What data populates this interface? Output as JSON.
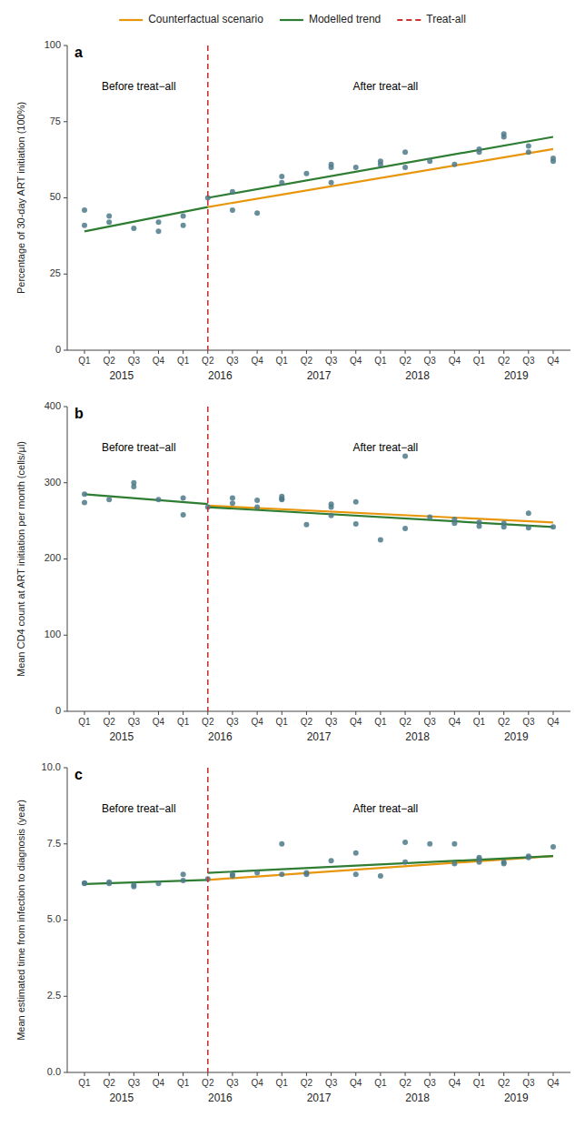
{
  "chart_data": [
    {
      "type": "scatter",
      "title": "a",
      "ylabel": "Percentage of 30-day ART initiation (100%)",
      "xlim": [
        0.3,
        20.7
      ],
      "xticks": [
        {
          "value": 1,
          "label": "Q1"
        },
        {
          "value": 2,
          "label": "Q2"
        },
        {
          "value": 3,
          "label": "Q3"
        },
        {
          "value": 4,
          "label": "Q4"
        },
        {
          "value": 5,
          "label": "Q1"
        },
        {
          "value": 6,
          "label": "Q2"
        },
        {
          "value": 7,
          "label": "Q3"
        },
        {
          "value": 8,
          "label": "Q4"
        },
        {
          "value": 9,
          "label": "Q1"
        },
        {
          "value": 10,
          "label": "Q2"
        },
        {
          "value": 11,
          "label": "Q3"
        },
        {
          "value": 12,
          "label": "Q4"
        },
        {
          "value": 13,
          "label": "Q1"
        },
        {
          "value": 14,
          "label": "Q2"
        },
        {
          "value": 15,
          "label": "Q3"
        },
        {
          "value": 16,
          "label": "Q4"
        },
        {
          "value": 17,
          "label": "Q1"
        },
        {
          "value": 18,
          "label": "Q2"
        },
        {
          "value": 19,
          "label": "Q3"
        },
        {
          "value": 20,
          "label": "Q4"
        }
      ],
      "x2ticks": [
        {
          "value": 2.5,
          "label": "2015"
        },
        {
          "value": 6.5,
          "label": "2016"
        },
        {
          "value": 10.5,
          "label": "2017"
        },
        {
          "value": 14.5,
          "label": "2018"
        },
        {
          "value": 18.5,
          "label": "2019"
        }
      ],
      "ylim": [
        0,
        100
      ],
      "yticks": [
        0,
        25,
        50,
        75,
        100
      ],
      "grid": false,
      "annotations": [
        {
          "text": "Before treat−all",
          "x": 3.2
        },
        {
          "text": "After treat−all",
          "x": 13.2
        }
      ],
      "series": [
        {
          "type": "scatter",
          "marker": "circle",
          "color": "#4d7a8a",
          "x": [
            1,
            1,
            2,
            2,
            3,
            4,
            4,
            5,
            5,
            6,
            7,
            7,
            8,
            9,
            9,
            10,
            11,
            11,
            11,
            12,
            13,
            13,
            14,
            14,
            15,
            16,
            17,
            17,
            18,
            18,
            19,
            19,
            20,
            20
          ],
          "values": [
            41,
            46,
            42,
            44,
            40,
            39,
            42,
            41,
            44,
            50,
            52,
            46,
            45,
            55,
            57,
            58,
            60,
            61,
            55,
            60,
            62,
            61,
            60,
            65,
            62,
            61,
            65,
            66,
            70,
            71,
            67,
            65,
            62,
            63
          ]
        },
        {
          "name": "Counterfactual scenario",
          "type": "line",
          "color": "#e8960c",
          "x": [
            6,
            20
          ],
          "values": [
            47.0,
            66.0
          ]
        },
        {
          "name": "Modelled trend",
          "type": "line",
          "color": "#2e7d32",
          "x": [
            1,
            6,
            null,
            6,
            20
          ],
          "values": [
            39.0,
            47.0,
            null,
            50.0,
            70.0
          ]
        },
        {
          "name": "Treat-all",
          "type": "vline",
          "color": "#cc3333",
          "line_style": "dashed",
          "x": [
            6.0
          ]
        }
      ]
    },
    {
      "type": "scatter",
      "title": "b",
      "ylabel": "Mean CD4 count at ART initiation per month (cells/µl)",
      "xlim": [
        0.3,
        20.7
      ],
      "xticks": [
        {
          "value": 1,
          "label": "Q1"
        },
        {
          "value": 2,
          "label": "Q2"
        },
        {
          "value": 3,
          "label": "Q3"
        },
        {
          "value": 4,
          "label": "Q4"
        },
        {
          "value": 5,
          "label": "Q1"
        },
        {
          "value": 6,
          "label": "Q2"
        },
        {
          "value": 7,
          "label": "Q3"
        },
        {
          "value": 8,
          "label": "Q4"
        },
        {
          "value": 9,
          "label": "Q1"
        },
        {
          "value": 10,
          "label": "Q2"
        },
        {
          "value": 11,
          "label": "Q3"
        },
        {
          "value": 12,
          "label": "Q4"
        },
        {
          "value": 13,
          "label": "Q1"
        },
        {
          "value": 14,
          "label": "Q2"
        },
        {
          "value": 15,
          "label": "Q3"
        },
        {
          "value": 16,
          "label": "Q4"
        },
        {
          "value": 17,
          "label": "Q1"
        },
        {
          "value": 18,
          "label": "Q2"
        },
        {
          "value": 19,
          "label": "Q3"
        },
        {
          "value": 20,
          "label": "Q4"
        }
      ],
      "x2ticks": [
        {
          "value": 2.5,
          "label": "2015"
        },
        {
          "value": 6.5,
          "label": "2016"
        },
        {
          "value": 10.5,
          "label": "2017"
        },
        {
          "value": 14.5,
          "label": "2018"
        },
        {
          "value": 18.5,
          "label": "2019"
        }
      ],
      "ylim": [
        0,
        400
      ],
      "yticks": [
        0,
        100,
        200,
        300,
        400
      ],
      "grid": false,
      "annotations": [
        {
          "text": "Before treat−all",
          "x": 3.2
        },
        {
          "text": "After treat−all",
          "x": 13.2
        }
      ],
      "series": [
        {
          "type": "scatter",
          "marker": "circle",
          "color": "#4d7a8a",
          "x": [
            1,
            1,
            2,
            3,
            3,
            4,
            5,
            5,
            6,
            7,
            7,
            8,
            8,
            9,
            9,
            9,
            10,
            11,
            11,
            11,
            12,
            12,
            13,
            14,
            14,
            15,
            16,
            16,
            17,
            17,
            18,
            18,
            19,
            19,
            20
          ],
          "values": [
            285,
            274,
            278,
            295,
            300,
            278,
            280,
            258,
            268,
            273,
            280,
            268,
            277,
            278,
            279,
            282,
            245,
            268,
            257,
            272,
            275,
            246,
            225,
            335,
            240,
            255,
            252,
            247,
            248,
            243,
            247,
            242,
            241,
            260,
            242
          ]
        },
        {
          "type": "line",
          "color": "#e8960c",
          "x": [
            6,
            20
          ],
          "values": [
            270.0,
            248.0
          ]
        },
        {
          "type": "line",
          "color": "#2e7d32",
          "x": [
            1,
            6,
            null,
            6,
            20
          ],
          "values": [
            285.0,
            272.0,
            null,
            268.0,
            242.0
          ]
        },
        {
          "type": "vline",
          "color": "#cc3333",
          "line_style": "dashed",
          "x": [
            6.0
          ]
        }
      ]
    },
    {
      "type": "scatter",
      "title": "c",
      "ylabel": "Mean estimated time from infection to diagnosis (year)",
      "xlim": [
        0.3,
        20.7
      ],
      "xticks": [
        {
          "value": 1,
          "label": "Q1"
        },
        {
          "value": 2,
          "label": "Q2"
        },
        {
          "value": 3,
          "label": "Q3"
        },
        {
          "value": 4,
          "label": "Q4"
        },
        {
          "value": 5,
          "label": "Q1"
        },
        {
          "value": 6,
          "label": "Q2"
        },
        {
          "value": 7,
          "label": "Q3"
        },
        {
          "value": 8,
          "label": "Q4"
        },
        {
          "value": 9,
          "label": "Q1"
        },
        {
          "value": 10,
          "label": "Q2"
        },
        {
          "value": 11,
          "label": "Q3"
        },
        {
          "value": 12,
          "label": "Q4"
        },
        {
          "value": 13,
          "label": "Q1"
        },
        {
          "value": 14,
          "label": "Q2"
        },
        {
          "value": 15,
          "label": "Q3"
        },
        {
          "value": 16,
          "label": "Q4"
        },
        {
          "value": 17,
          "label": "Q1"
        },
        {
          "value": 18,
          "label": "Q2"
        },
        {
          "value": 19,
          "label": "Q3"
        },
        {
          "value": 20,
          "label": "Q4"
        }
      ],
      "x2ticks": [
        {
          "value": 2.5,
          "label": "2015"
        },
        {
          "value": 6.5,
          "label": "2016"
        },
        {
          "value": 10.5,
          "label": "2017"
        },
        {
          "value": 14.5,
          "label": "2018"
        },
        {
          "value": 18.5,
          "label": "2019"
        }
      ],
      "ylim": [
        0.0,
        10.0
      ],
      "yticks": [
        {
          "value": 0.0,
          "label": "0.0"
        },
        {
          "value": 2.5,
          "label": "2.5"
        },
        {
          "value": 5.0,
          "label": "5.0"
        },
        {
          "value": 7.5,
          "label": "7.5"
        },
        {
          "value": 10.0,
          "label": "10.0"
        }
      ],
      "grid": false,
      "annotations": [
        {
          "text": "Before treat−all",
          "x": 3.2
        },
        {
          "text": "After treat−all",
          "x": 13.2
        }
      ],
      "series": [
        {
          "type": "scatter",
          "marker": "circle",
          "color": "#4d7a8a",
          "x": [
            1,
            1,
            2,
            2,
            3,
            3,
            4,
            5,
            5,
            6,
            7,
            7,
            8,
            9,
            9,
            10,
            10,
            11,
            12,
            12,
            13,
            14,
            14,
            15,
            16,
            16,
            17,
            17,
            17,
            18,
            18,
            19,
            19,
            20
          ],
          "values": [
            6.22,
            6.2,
            6.2,
            6.25,
            6.1,
            6.15,
            6.2,
            6.3,
            6.5,
            6.35,
            6.45,
            6.5,
            6.55,
            6.5,
            7.5,
            6.55,
            6.5,
            6.95,
            7.2,
            6.5,
            6.45,
            6.9,
            7.55,
            7.5,
            7.5,
            6.85,
            7.0,
            6.9,
            7.05,
            6.9,
            6.85,
            7.05,
            7.1,
            7.4
          ]
        },
        {
          "type": "line",
          "color": "#e8960c",
          "x": [
            6,
            20
          ],
          "values": [
            6.32,
            7.1
          ]
        },
        {
          "type": "line",
          "color": "#2e7d32",
          "x": [
            1,
            6,
            null,
            6,
            20
          ],
          "values": [
            6.18,
            6.32,
            null,
            6.55,
            7.1
          ]
        },
        {
          "type": "vline",
          "color": "#cc3333",
          "line_style": "dashed",
          "x": [
            6.0
          ]
        }
      ]
    }
  ]
}
